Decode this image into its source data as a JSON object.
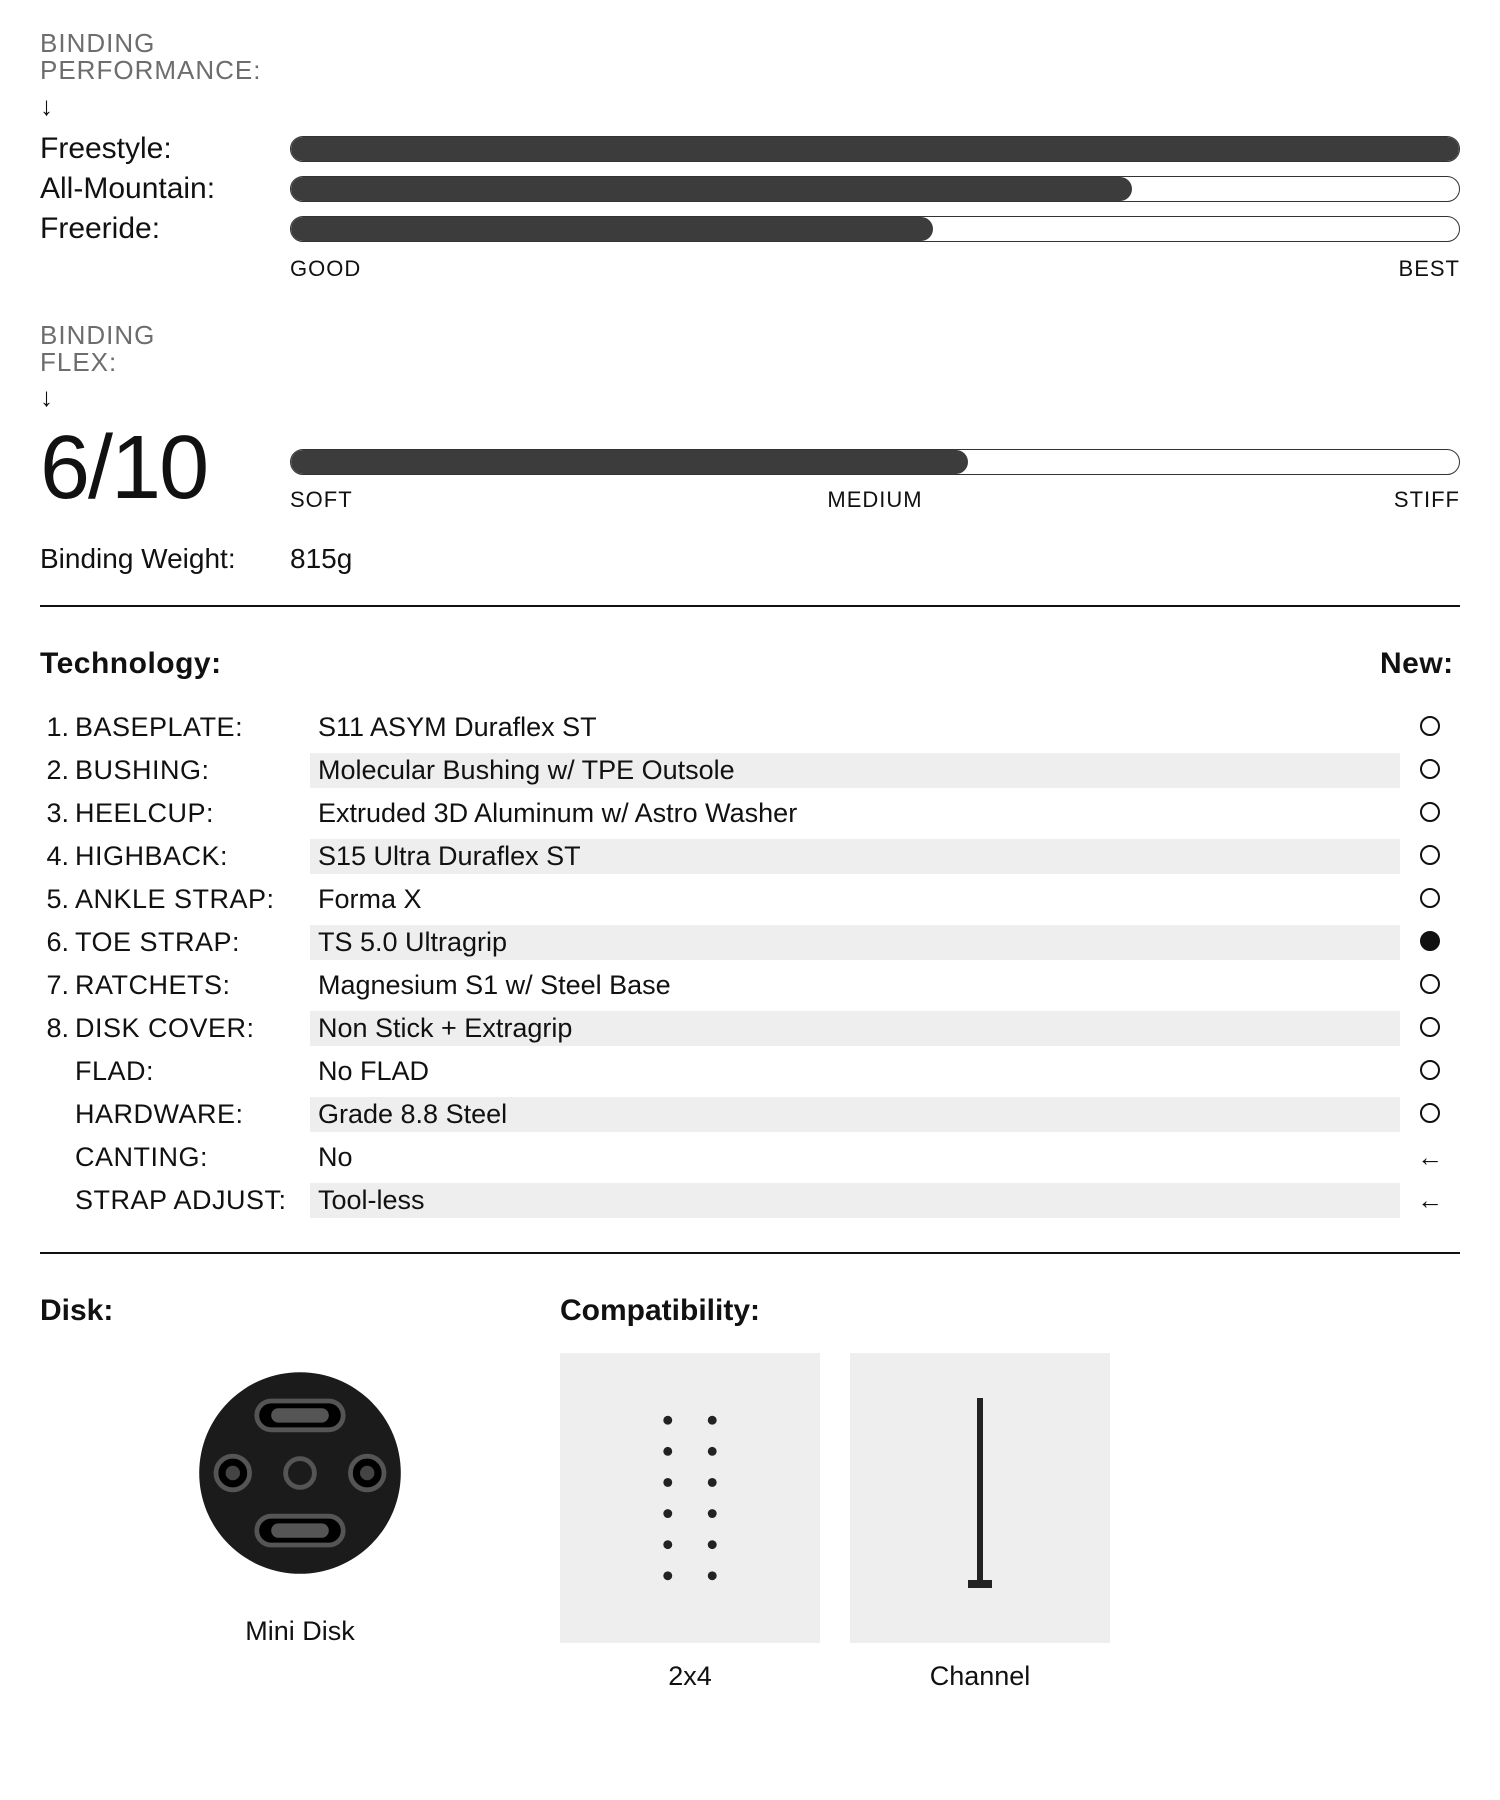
{
  "colors": {
    "bar_fill": "#3c3c3c",
    "bar_track_border": "#333333",
    "shade_bg": "#eeeeee",
    "text_muted": "#6d6d6d",
    "tile_bg": "#eeeeee"
  },
  "performance": {
    "section_label_line1": "BINDING",
    "section_label_line2": "PERFORMANCE:",
    "rows": [
      {
        "name": "Freestyle:",
        "pct": 100
      },
      {
        "name": "All-Mountain:",
        "pct": 72
      },
      {
        "name": "Freeride:",
        "pct": 55
      }
    ],
    "axis_left": "GOOD",
    "axis_right": "BEST"
  },
  "flex": {
    "section_label_line1": "BINDING",
    "section_label_line2": "FLEX:",
    "score": "6/10",
    "pct": 58,
    "axis_left": "SOFT",
    "axis_mid": "MEDIUM",
    "axis_right": "STIFF"
  },
  "weight": {
    "label": "Binding Weight:",
    "value": "815g"
  },
  "technology": {
    "heading": "Technology:",
    "new_heading": "New:",
    "rows": [
      {
        "num": "1.",
        "label": "BASEPLATE:",
        "value": "S11 ASYM Duraflex ST",
        "mark": "open",
        "shade": false
      },
      {
        "num": "2.",
        "label": "BUSHING:",
        "value": "Molecular Bushing w/ TPE Outsole",
        "mark": "open",
        "shade": true
      },
      {
        "num": "3.",
        "label": "HEELCUP:",
        "value": "Extruded 3D Aluminum w/ Astro Washer",
        "mark": "open",
        "shade": false
      },
      {
        "num": "4.",
        "label": "HIGHBACK:",
        "value": "S15 Ultra Duraflex ST",
        "mark": "open",
        "shade": true
      },
      {
        "num": "5.",
        "label": "ANKLE STRAP:",
        "value": "Forma X",
        "mark": "open",
        "shade": false
      },
      {
        "num": "6.",
        "label": "TOE STRAP:",
        "value": "TS 5.0 Ultragrip",
        "mark": "fill",
        "shade": true
      },
      {
        "num": "7.",
        "label": "RATCHETS:",
        "value": "Magnesium S1 w/ Steel Base",
        "mark": "open",
        "shade": false
      },
      {
        "num": "8.",
        "label": "DISK COVER:",
        "value": "Non Stick + Extragrip",
        "mark": "open",
        "shade": true
      },
      {
        "num": "",
        "label": "FLAD:",
        "value": "No FLAD",
        "mark": "open",
        "shade": false
      },
      {
        "num": "",
        "label": "HARDWARE:",
        "value": "Grade 8.8 Steel",
        "mark": "open",
        "shade": true
      },
      {
        "num": "",
        "label": "CANTING:",
        "value": "No",
        "mark": "arrow",
        "shade": false
      },
      {
        "num": "",
        "label": "STRAP ADJUST:",
        "value": "Tool-less",
        "mark": "arrow",
        "shade": true
      }
    ]
  },
  "disk": {
    "heading": "Disk:",
    "label": "Mini Disk"
  },
  "compatibility": {
    "heading": "Compatibility:",
    "items": [
      {
        "label": "2x4",
        "icon": "dots"
      },
      {
        "label": "Channel",
        "icon": "channel"
      }
    ]
  }
}
